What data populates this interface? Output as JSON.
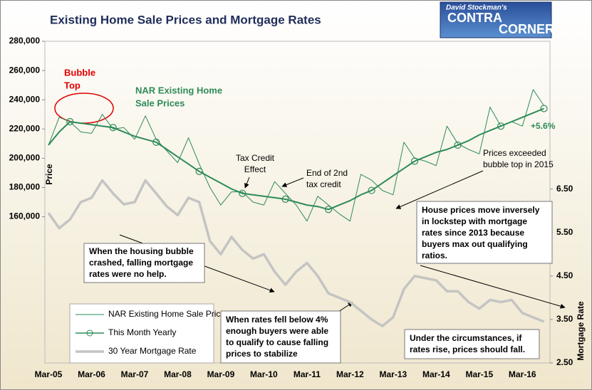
{
  "chart_data": {
    "type": "line",
    "title": "Existing Home Sale Prices and Mortgage Rates",
    "y_label": "Price",
    "y2_label": "Mortgage Rate",
    "categories": [
      "Mar-05",
      null,
      null,
      null,
      "Mar-06",
      null,
      null,
      null,
      "Mar-07",
      null,
      null,
      null,
      "Mar-08",
      null,
      null,
      null,
      "Mar-09",
      null,
      null,
      null,
      "Mar-10",
      null,
      null,
      null,
      "Mar-11",
      null,
      null,
      null,
      "Mar-12",
      null,
      null,
      null,
      "Mar-13",
      null,
      null,
      null,
      "Mar-14",
      null,
      null,
      null,
      "Mar-15",
      null,
      null,
      null,
      "Mar-16",
      null,
      null
    ],
    "ylim": [
      60000,
      280000
    ],
    "yticks": [
      {
        "value": 160000,
        "label": "160,000"
      },
      {
        "value": 180000,
        "label": "180,000"
      },
      {
        "value": 200000,
        "label": "200,000"
      },
      {
        "value": 220000,
        "label": "220,000"
      },
      {
        "value": 240000,
        "label": "240,000"
      },
      {
        "value": 260000,
        "label": "260,000"
      },
      {
        "value": 280000,
        "label": "280,000"
      }
    ],
    "y2lim": [
      2.5,
      9.9
    ],
    "y2ticks": [
      {
        "value": 2.5,
        "label": "2.50"
      },
      {
        "value": 3.5,
        "label": "3.50"
      },
      {
        "value": 4.5,
        "label": "4.50"
      },
      {
        "value": 5.5,
        "label": "5.50"
      },
      {
        "value": 6.5,
        "label": "6.50"
      }
    ],
    "series": [
      {
        "name": "NAR Existing Home Sale Price",
        "color": "#2e8b57",
        "style": "thin",
        "values": [
          209000,
          228000,
          225000,
          218000,
          217000,
          230000,
          220000,
          221000,
          213000,
          229000,
          213000,
          205000,
          197000,
          214000,
          196000,
          180000,
          168000,
          177000,
          177000,
          170000,
          168000,
          184000,
          176000,
          168000,
          157000,
          174000,
          168000,
          162000,
          157000,
          189000,
          185000,
          178000,
          175000,
          211000,
          200000,
          198000,
          195000,
          222000,
          210000,
          206000,
          203000,
          235000,
          222000,
          225000,
          222000,
          247000,
          236000
        ]
      },
      {
        "name": "This Month Yearly",
        "color": "#2e8b57",
        "style": "markers",
        "values": [
          209000,
          218000,
          225000,
          224000,
          223000,
          222000,
          221000,
          218000,
          215000,
          213000,
          211000,
          206000,
          201000,
          196000,
          191000,
          187000,
          183000,
          179000,
          176000,
          175000,
          174000,
          173000,
          172000,
          170000,
          168000,
          167000,
          165000,
          168000,
          171000,
          175000,
          178000,
          183000,
          188000,
          193000,
          198000,
          201000,
          204000,
          206000,
          209000,
          212000,
          216000,
          219000,
          222000,
          225000,
          228000,
          231000,
          234000
        ]
      },
      {
        "name": "30 Year Mortgage Rate",
        "color": "#c4c4c4",
        "style": "thick",
        "axis": "y2",
        "values": [
          5.95,
          5.6,
          5.8,
          6.2,
          6.3,
          6.7,
          6.4,
          6.15,
          6.2,
          6.7,
          6.4,
          6.1,
          5.9,
          6.3,
          6.2,
          5.3,
          5.0,
          5.4,
          5.1,
          4.9,
          5.0,
          4.6,
          4.3,
          4.6,
          4.8,
          4.5,
          4.1,
          4.0,
          3.9,
          3.7,
          3.5,
          3.35,
          3.55,
          4.2,
          4.5,
          4.45,
          4.4,
          4.15,
          4.15,
          3.9,
          3.75,
          3.95,
          3.9,
          3.95,
          3.65,
          3.55,
          3.45
        ]
      }
    ],
    "annotations": [
      {
        "lines": [
          "Bubble",
          "Top"
        ],
        "color": "#e00000"
      },
      {
        "lines": [
          "NAR Existing Home",
          "Sale Prices"
        ],
        "color": "#2e8b57"
      },
      {
        "lines": [
          "+5.6%"
        ],
        "color": "#2e8b57"
      },
      {
        "lines": [
          "Tax Credit",
          "Effect"
        ],
        "color": "#000000"
      },
      {
        "lines": [
          "End of 2nd",
          "tax credit"
        ],
        "color": "#000000"
      },
      {
        "lines": [
          "Prices exceeded",
          "bubble top in 2015"
        ],
        "color": "#000000"
      },
      {
        "lines": [
          "When the housing bubble",
          "crashed, falling mortgage",
          "rates were no help."
        ],
        "color": "#000000"
      },
      {
        "lines": [
          "House prices move inversely",
          "in lockstep with mortgage",
          "rates since 2013 because",
          "buyers max out qualifying",
          "ratios."
        ],
        "color": "#000000"
      },
      {
        "lines": [
          "When rates fell below 4%",
          "enough buyers were able",
          "to qualify to cause falling",
          "prices to stabilize"
        ],
        "color": "#000000"
      },
      {
        "lines": [
          "Under the circumstances, if",
          "rates rise, prices should fall."
        ],
        "color": "#000000"
      }
    ]
  },
  "logo": [
    "David Stockman's",
    "CONTRA",
    "CORNER"
  ]
}
